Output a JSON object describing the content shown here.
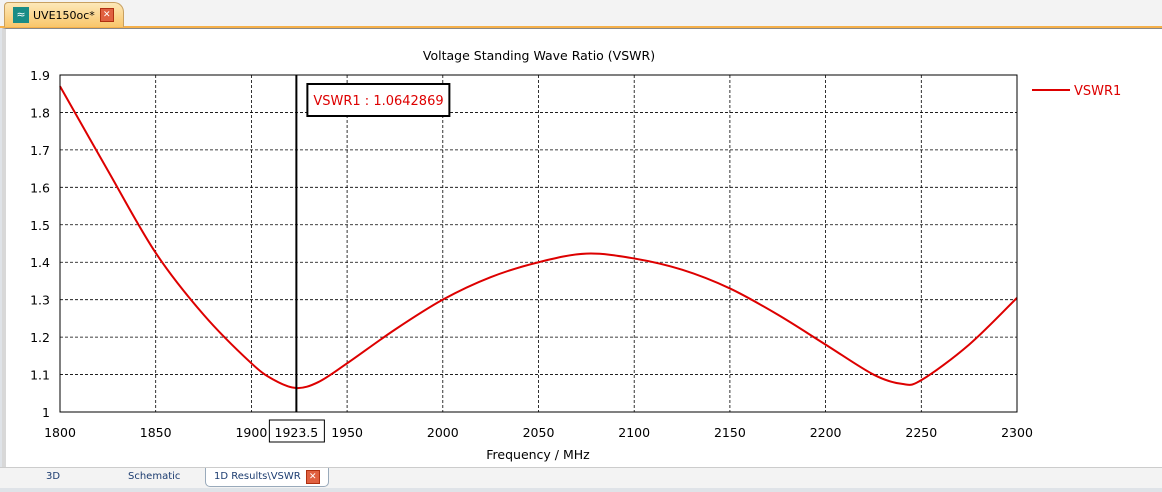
{
  "window": {
    "tab_title": "UVE150oc*"
  },
  "bottom_tabs": [
    {
      "label": "3D"
    },
    {
      "label": "Schematic"
    },
    {
      "label": "1D Results\\VSWR"
    }
  ],
  "colors": {
    "series": "#dd0000"
  },
  "chart_data": {
    "type": "line",
    "title": "Voltage Standing Wave Ratio (VSWR)",
    "xlabel": "Frequency / MHz",
    "ylabel": "",
    "xlim": [
      1800,
      2300
    ],
    "ylim": [
      1,
      1.9
    ],
    "xticks": [
      "1800",
      "1850",
      "1900",
      "1950",
      "2000",
      "2050",
      "2100",
      "2150",
      "2200",
      "2250",
      "2300"
    ],
    "yticks": [
      "1",
      "1.1",
      "1.2",
      "1.3",
      "1.4",
      "1.5",
      "1.6",
      "1.7",
      "1.8",
      "1.9"
    ],
    "grid": true,
    "legend": "right",
    "series": [
      {
        "name": "VSWR1",
        "x": [
          1800,
          1825,
          1850,
          1875,
          1900,
          1912,
          1923.5,
          1935,
          1950,
          1975,
          2000,
          2025,
          2050,
          2075,
          2100,
          2125,
          2150,
          2175,
          2200,
          2225,
          2240,
          2250,
          2275,
          2300
        ],
        "y": [
          1.87,
          1.645,
          1.425,
          1.26,
          1.13,
          1.085,
          1.064,
          1.08,
          1.13,
          1.22,
          1.3,
          1.36,
          1.4,
          1.423,
          1.41,
          1.38,
          1.33,
          1.26,
          1.18,
          1.1,
          1.075,
          1.085,
          1.18,
          1.305
        ]
      }
    ],
    "marker": {
      "x": 1923.5,
      "x_label": "1923.5",
      "label": "VSWR1 : 1.0642869"
    }
  }
}
